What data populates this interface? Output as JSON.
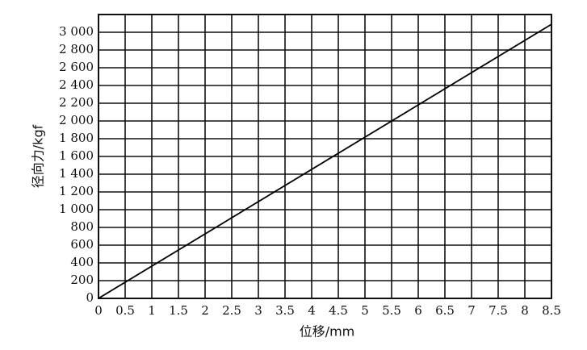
{
  "chart_data": {
    "type": "line",
    "x_label": "位移/mm",
    "y_label": "径向力/kgf",
    "x": [
      0,
      8.5
    ],
    "series": [
      {
        "color": "#000000",
        "values": [
          0,
          3090
        ]
      }
    ],
    "xlim": [
      0,
      8.5
    ],
    "ylim": [
      0,
      3200
    ],
    "xticks": [
      0,
      0.5,
      1,
      1.5,
      2,
      2.5,
      3,
      3.5,
      4,
      4.5,
      5,
      5.5,
      6,
      6.5,
      7,
      7.5,
      8,
      8.5
    ],
    "yticks": [
      0,
      200,
      400,
      600,
      800,
      {
        "value": 1000,
        "label": "1 000"
      },
      {
        "value": 1200,
        "label": "1 200"
      },
      {
        "value": 1400,
        "label": "1 400"
      },
      {
        "value": 1600,
        "label": "1 600"
      },
      {
        "value": 1800,
        "label": "1 800"
      },
      {
        "value": 2000,
        "label": "2 000"
      },
      {
        "value": 2200,
        "label": "2 200"
      },
      {
        "value": 2400,
        "label": "2 400"
      },
      {
        "value": 2600,
        "label": "2 600"
      },
      {
        "value": 2800,
        "label": "2 800"
      },
      {
        "value": 3000,
        "label": "3 000"
      }
    ],
    "grid": true
  }
}
